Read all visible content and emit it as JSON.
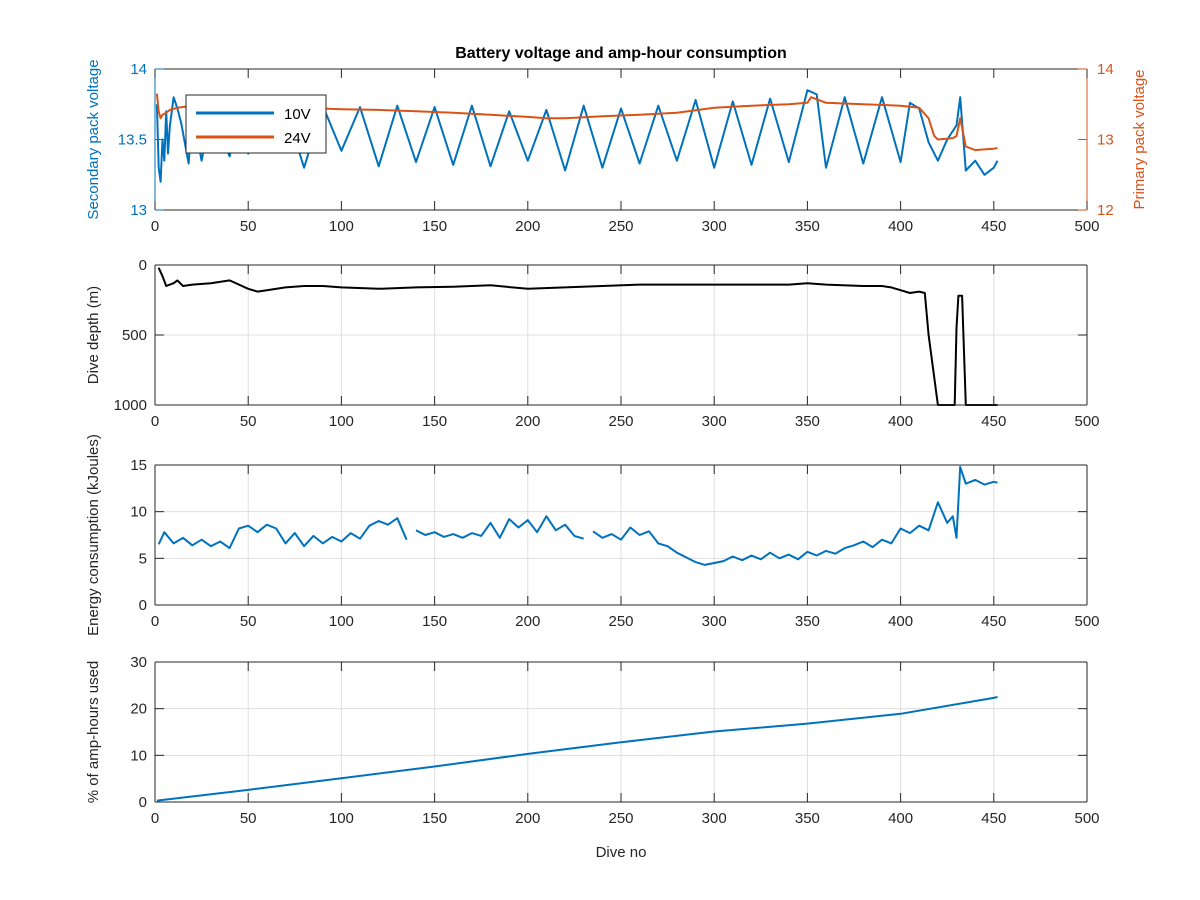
{
  "chart_data": [
    {
      "type": "line",
      "title": "Battery voltage and amp-hour consumption",
      "xlim": [
        0,
        500
      ],
      "xticks": [
        0,
        50,
        100,
        150,
        200,
        250,
        300,
        350,
        400,
        450,
        500
      ],
      "ylabel": "Secondary pack voltage",
      "ylim": [
        13,
        14
      ],
      "yticks": [
        "13",
        "13.5",
        "14"
      ],
      "ylabel_right": "Primary pack voltage",
      "ylim_right": [
        12,
        14
      ],
      "yticks_right": [
        "12",
        "13",
        "14"
      ],
      "grid": false,
      "legend_position": "top-left",
      "colors": {
        "10V": "#0072BD",
        "24V": "#D95319"
      },
      "series": [
        {
          "name": "10V",
          "axis": "left",
          "color": "#0072BD",
          "x": [
            1,
            2,
            3,
            4,
            5,
            6,
            7,
            8,
            9,
            10,
            12,
            14,
            18,
            20,
            25,
            30,
            40,
            45,
            50,
            60,
            70,
            80,
            90,
            100,
            110,
            120,
            130,
            140,
            150,
            160,
            170,
            180,
            190,
            200,
            210,
            220,
            230,
            240,
            250,
            260,
            270,
            280,
            290,
            300,
            310,
            320,
            330,
            340,
            350,
            355,
            360,
            370,
            380,
            390,
            400,
            405,
            410,
            415,
            420,
            425,
            430,
            432,
            435,
            440,
            445,
            450,
            452
          ],
          "values": [
            13.75,
            13.3,
            13.2,
            13.5,
            13.35,
            13.7,
            13.4,
            13.6,
            13.7,
            13.8,
            13.72,
            13.62,
            13.33,
            13.7,
            13.35,
            13.7,
            13.38,
            13.72,
            13.4,
            13.74,
            13.72,
            13.3,
            13.74,
            13.42,
            13.73,
            13.31,
            13.74,
            13.34,
            13.73,
            13.32,
            13.74,
            13.31,
            13.7,
            13.35,
            13.71,
            13.28,
            13.74,
            13.3,
            13.72,
            13.33,
            13.74,
            13.35,
            13.78,
            13.3,
            13.77,
            13.32,
            13.79,
            13.34,
            13.85,
            13.82,
            13.3,
            13.8,
            13.33,
            13.8,
            13.34,
            13.76,
            13.72,
            13.48,
            13.35,
            13.5,
            13.6,
            13.8,
            13.28,
            13.35,
            13.25,
            13.3,
            13.35
          ]
        },
        {
          "name": "24V",
          "axis": "right",
          "color": "#D95319",
          "x": [
            1,
            2,
            3,
            4,
            6,
            8,
            12,
            20,
            40,
            60,
            80,
            100,
            120,
            140,
            160,
            180,
            200,
            210,
            220,
            240,
            260,
            280,
            300,
            320,
            340,
            350,
            352,
            360,
            380,
            400,
            410,
            415,
            418,
            420,
            428,
            430,
            432,
            435,
            440,
            445,
            450,
            452
          ],
          "values": [
            13.65,
            13.4,
            13.3,
            13.35,
            13.38,
            13.42,
            13.45,
            13.48,
            13.48,
            13.45,
            13.45,
            13.43,
            13.42,
            13.4,
            13.38,
            13.35,
            13.32,
            13.3,
            13.3,
            13.33,
            13.35,
            13.38,
            13.45,
            13.48,
            13.5,
            13.52,
            13.6,
            13.52,
            13.5,
            13.48,
            13.45,
            13.3,
            13.05,
            13.0,
            13.02,
            13.05,
            13.3,
            12.9,
            12.85,
            12.86,
            12.87,
            12.88
          ]
        }
      ]
    },
    {
      "type": "line",
      "xlim": [
        0,
        500
      ],
      "xticks": [
        0,
        50,
        100,
        150,
        200,
        250,
        300,
        350,
        400,
        450,
        500
      ],
      "ylabel": "Dive depth (m)",
      "ylim": [
        0,
        1000
      ],
      "y_reversed": true,
      "yticks": [
        "0",
        "500",
        "1000"
      ],
      "grid": true,
      "series": [
        {
          "color": "#000000",
          "x": [
            2,
            4,
            6,
            10,
            12,
            15,
            20,
            30,
            40,
            50,
            55,
            60,
            70,
            80,
            90,
            100,
            120,
            140,
            160,
            180,
            200,
            220,
            240,
            260,
            280,
            300,
            320,
            340,
            350,
            360,
            380,
            390,
            395,
            400,
            405,
            410,
            413,
            415,
            420,
            425,
            429,
            430,
            431,
            433,
            435,
            440,
            450,
            452
          ],
          "values": [
            20,
            80,
            150,
            130,
            110,
            150,
            140,
            130,
            110,
            170,
            190,
            180,
            160,
            150,
            150,
            160,
            170,
            160,
            155,
            145,
            170,
            160,
            150,
            140,
            140,
            140,
            140,
            140,
            130,
            140,
            150,
            150,
            160,
            180,
            200,
            190,
            200,
            500,
            1000,
            1000,
            1000,
            450,
            220,
            220,
            1000,
            1000,
            1000,
            1000
          ]
        }
      ]
    },
    {
      "type": "line",
      "xlim": [
        0,
        500
      ],
      "xticks": [
        0,
        50,
        100,
        150,
        200,
        250,
        300,
        350,
        400,
        450,
        500
      ],
      "ylabel": "Energy consumption (kJoules)",
      "ylim": [
        0,
        15
      ],
      "yticks": [
        "0",
        "5",
        "10",
        "15"
      ],
      "grid": true,
      "series": [
        {
          "color": "#0072BD",
          "x": [
            2,
            5,
            10,
            15,
            20,
            25,
            30,
            35,
            40,
            45,
            50,
            55,
            60,
            65,
            70,
            75,
            80,
            85,
            90,
            95,
            100,
            105,
            110,
            115,
            120,
            125,
            130,
            135,
            null,
            140,
            145,
            150,
            155,
            160,
            165,
            170,
            175,
            180,
            185,
            190,
            195,
            200,
            205,
            210,
            215,
            220,
            225,
            230,
            null,
            235,
            240,
            245,
            250,
            255,
            260,
            265,
            270,
            275,
            280,
            285,
            290,
            295,
            300,
            305,
            310,
            315,
            320,
            325,
            330,
            335,
            340,
            345,
            350,
            355,
            360,
            365,
            370,
            375,
            380,
            385,
            390,
            395,
            400,
            405,
            410,
            415,
            420,
            425,
            428,
            430,
            432,
            435,
            440,
            445,
            450,
            452
          ],
          "values": [
            6.5,
            7.8,
            6.6,
            7.2,
            6.4,
            7.0,
            6.3,
            6.8,
            6.1,
            8.2,
            8.5,
            7.8,
            8.6,
            8.2,
            6.6,
            7.7,
            6.3,
            7.4,
            6.6,
            7.3,
            6.8,
            7.7,
            7.1,
            8.5,
            9.0,
            8.6,
            9.3,
            7.0,
            null,
            8.0,
            7.5,
            7.8,
            7.3,
            7.6,
            7.2,
            7.7,
            7.4,
            8.8,
            7.2,
            9.2,
            8.3,
            9.1,
            7.8,
            9.5,
            8.0,
            8.6,
            7.4,
            7.1,
            null,
            7.9,
            7.2,
            7.6,
            7.0,
            8.3,
            7.5,
            7.9,
            6.6,
            6.3,
            5.6,
            5.1,
            4.6,
            4.3,
            4.5,
            4.7,
            5.2,
            4.8,
            5.3,
            4.9,
            5.6,
            5.0,
            5.4,
            4.9,
            5.7,
            5.3,
            5.8,
            5.5,
            6.1,
            6.4,
            6.8,
            6.2,
            7.0,
            6.6,
            8.2,
            7.7,
            8.5,
            8.0,
            11.0,
            8.8,
            9.5,
            7.2,
            14.8,
            13.0,
            13.4,
            12.9,
            13.2,
            13.1
          ]
        }
      ]
    },
    {
      "type": "line",
      "xlim": [
        0,
        500
      ],
      "xticks": [
        0,
        50,
        100,
        150,
        200,
        250,
        300,
        350,
        400,
        450,
        500
      ],
      "xlabel": "Dive no",
      "ylabel": "% of amp-hours used",
      "ylim": [
        0,
        30
      ],
      "yticks": [
        "0",
        "10",
        "20",
        "30"
      ],
      "grid": true,
      "series": [
        {
          "color": "#0072BD",
          "x": [
            1,
            50,
            100,
            150,
            200,
            250,
            300,
            350,
            400,
            450,
            452
          ],
          "values": [
            0.3,
            2.6,
            5.1,
            7.6,
            10.3,
            12.8,
            15.1,
            16.8,
            18.9,
            22.3,
            22.5
          ]
        }
      ]
    }
  ]
}
